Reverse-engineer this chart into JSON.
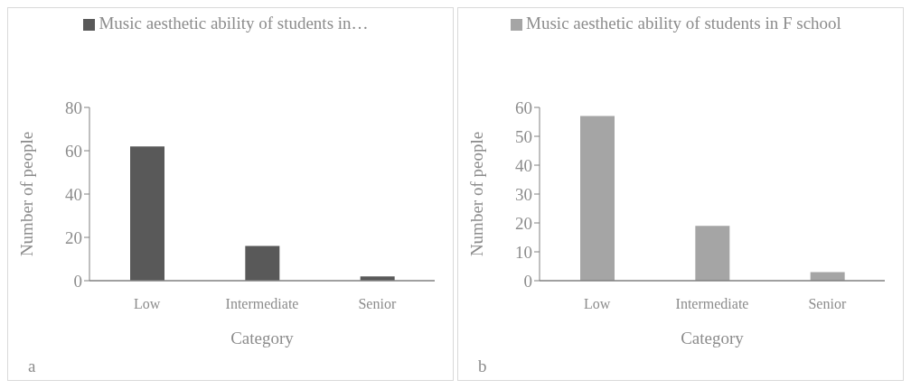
{
  "chart_data": [
    {
      "type": "bar",
      "categories": [
        "Low",
        "Intermediate",
        "Senior"
      ],
      "series": [
        {
          "name": "Music aesthetic ability of students in…",
          "color": "#595959",
          "values": [
            62,
            16,
            2
          ]
        }
      ],
      "xlabel": "Category",
      "ylabel": "Number of people",
      "ylim": [
        0,
        80
      ],
      "yticks": [
        0,
        20,
        40,
        60,
        80
      ],
      "legend": "top",
      "annotations": [
        "a"
      ]
    },
    {
      "type": "bar",
      "categories": [
        "Low",
        "Intermediate",
        "Senior"
      ],
      "series": [
        {
          "name": "Music aesthetic ability of students in F school",
          "color": "#a5a5a5",
          "values": [
            57,
            19,
            3
          ]
        }
      ],
      "xlabel": "Category",
      "ylabel": "Number of people",
      "ylim": [
        0,
        60
      ],
      "yticks": [
        0,
        10,
        20,
        30,
        40,
        50,
        60
      ],
      "legend": "top",
      "annotations": [
        "b"
      ]
    }
  ]
}
